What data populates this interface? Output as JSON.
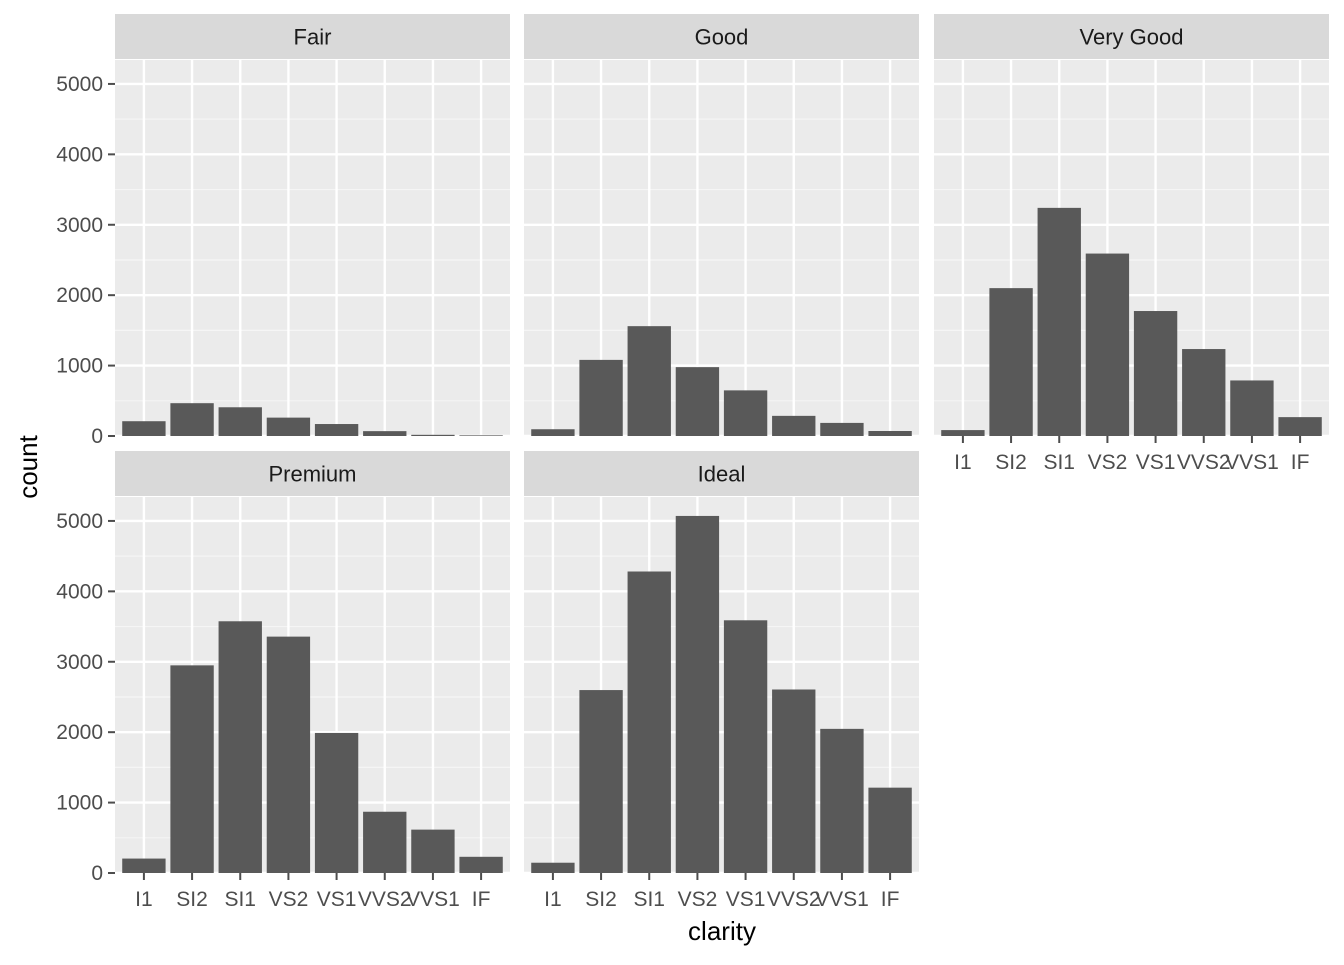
{
  "chart_data": {
    "type": "bar",
    "xlabel": "clarity",
    "ylabel": "count",
    "categories": [
      "I1",
      "SI2",
      "SI1",
      "VS2",
      "VS1",
      "VVS2",
      "VVS1",
      "IF"
    ],
    "ylim": [
      0,
      5340
    ],
    "yticks": [
      0,
      1000,
      2000,
      3000,
      4000,
      5000
    ],
    "ytick_labels": [
      "0",
      "1000",
      "2000",
      "3000",
      "4000",
      "5000"
    ],
    "grid": true,
    "legend": "none",
    "facets": [
      {
        "name": "Fair",
        "values": [
          210,
          466,
          408,
          261,
          170,
          69,
          17,
          9
        ]
      },
      {
        "name": "Good",
        "values": [
          96,
          1081,
          1560,
          978,
          648,
          286,
          186,
          71
        ]
      },
      {
        "name": "Very Good",
        "values": [
          84,
          2100,
          3240,
          2591,
          1775,
          1235,
          789,
          268
        ]
      },
      {
        "name": "Premium",
        "values": [
          205,
          2949,
          3575,
          3357,
          1989,
          870,
          616,
          230
        ]
      },
      {
        "name": "Ideal",
        "values": [
          146,
          2598,
          4282,
          5071,
          3589,
          2606,
          2047,
          1212
        ]
      }
    ],
    "colors": {
      "bar": "#595959",
      "panel": "#ebebeb",
      "strip": "#d9d9d9",
      "grid_major": "#ffffff",
      "grid_minor": "#f5f5f5",
      "tick": "#4d4d4d"
    }
  }
}
